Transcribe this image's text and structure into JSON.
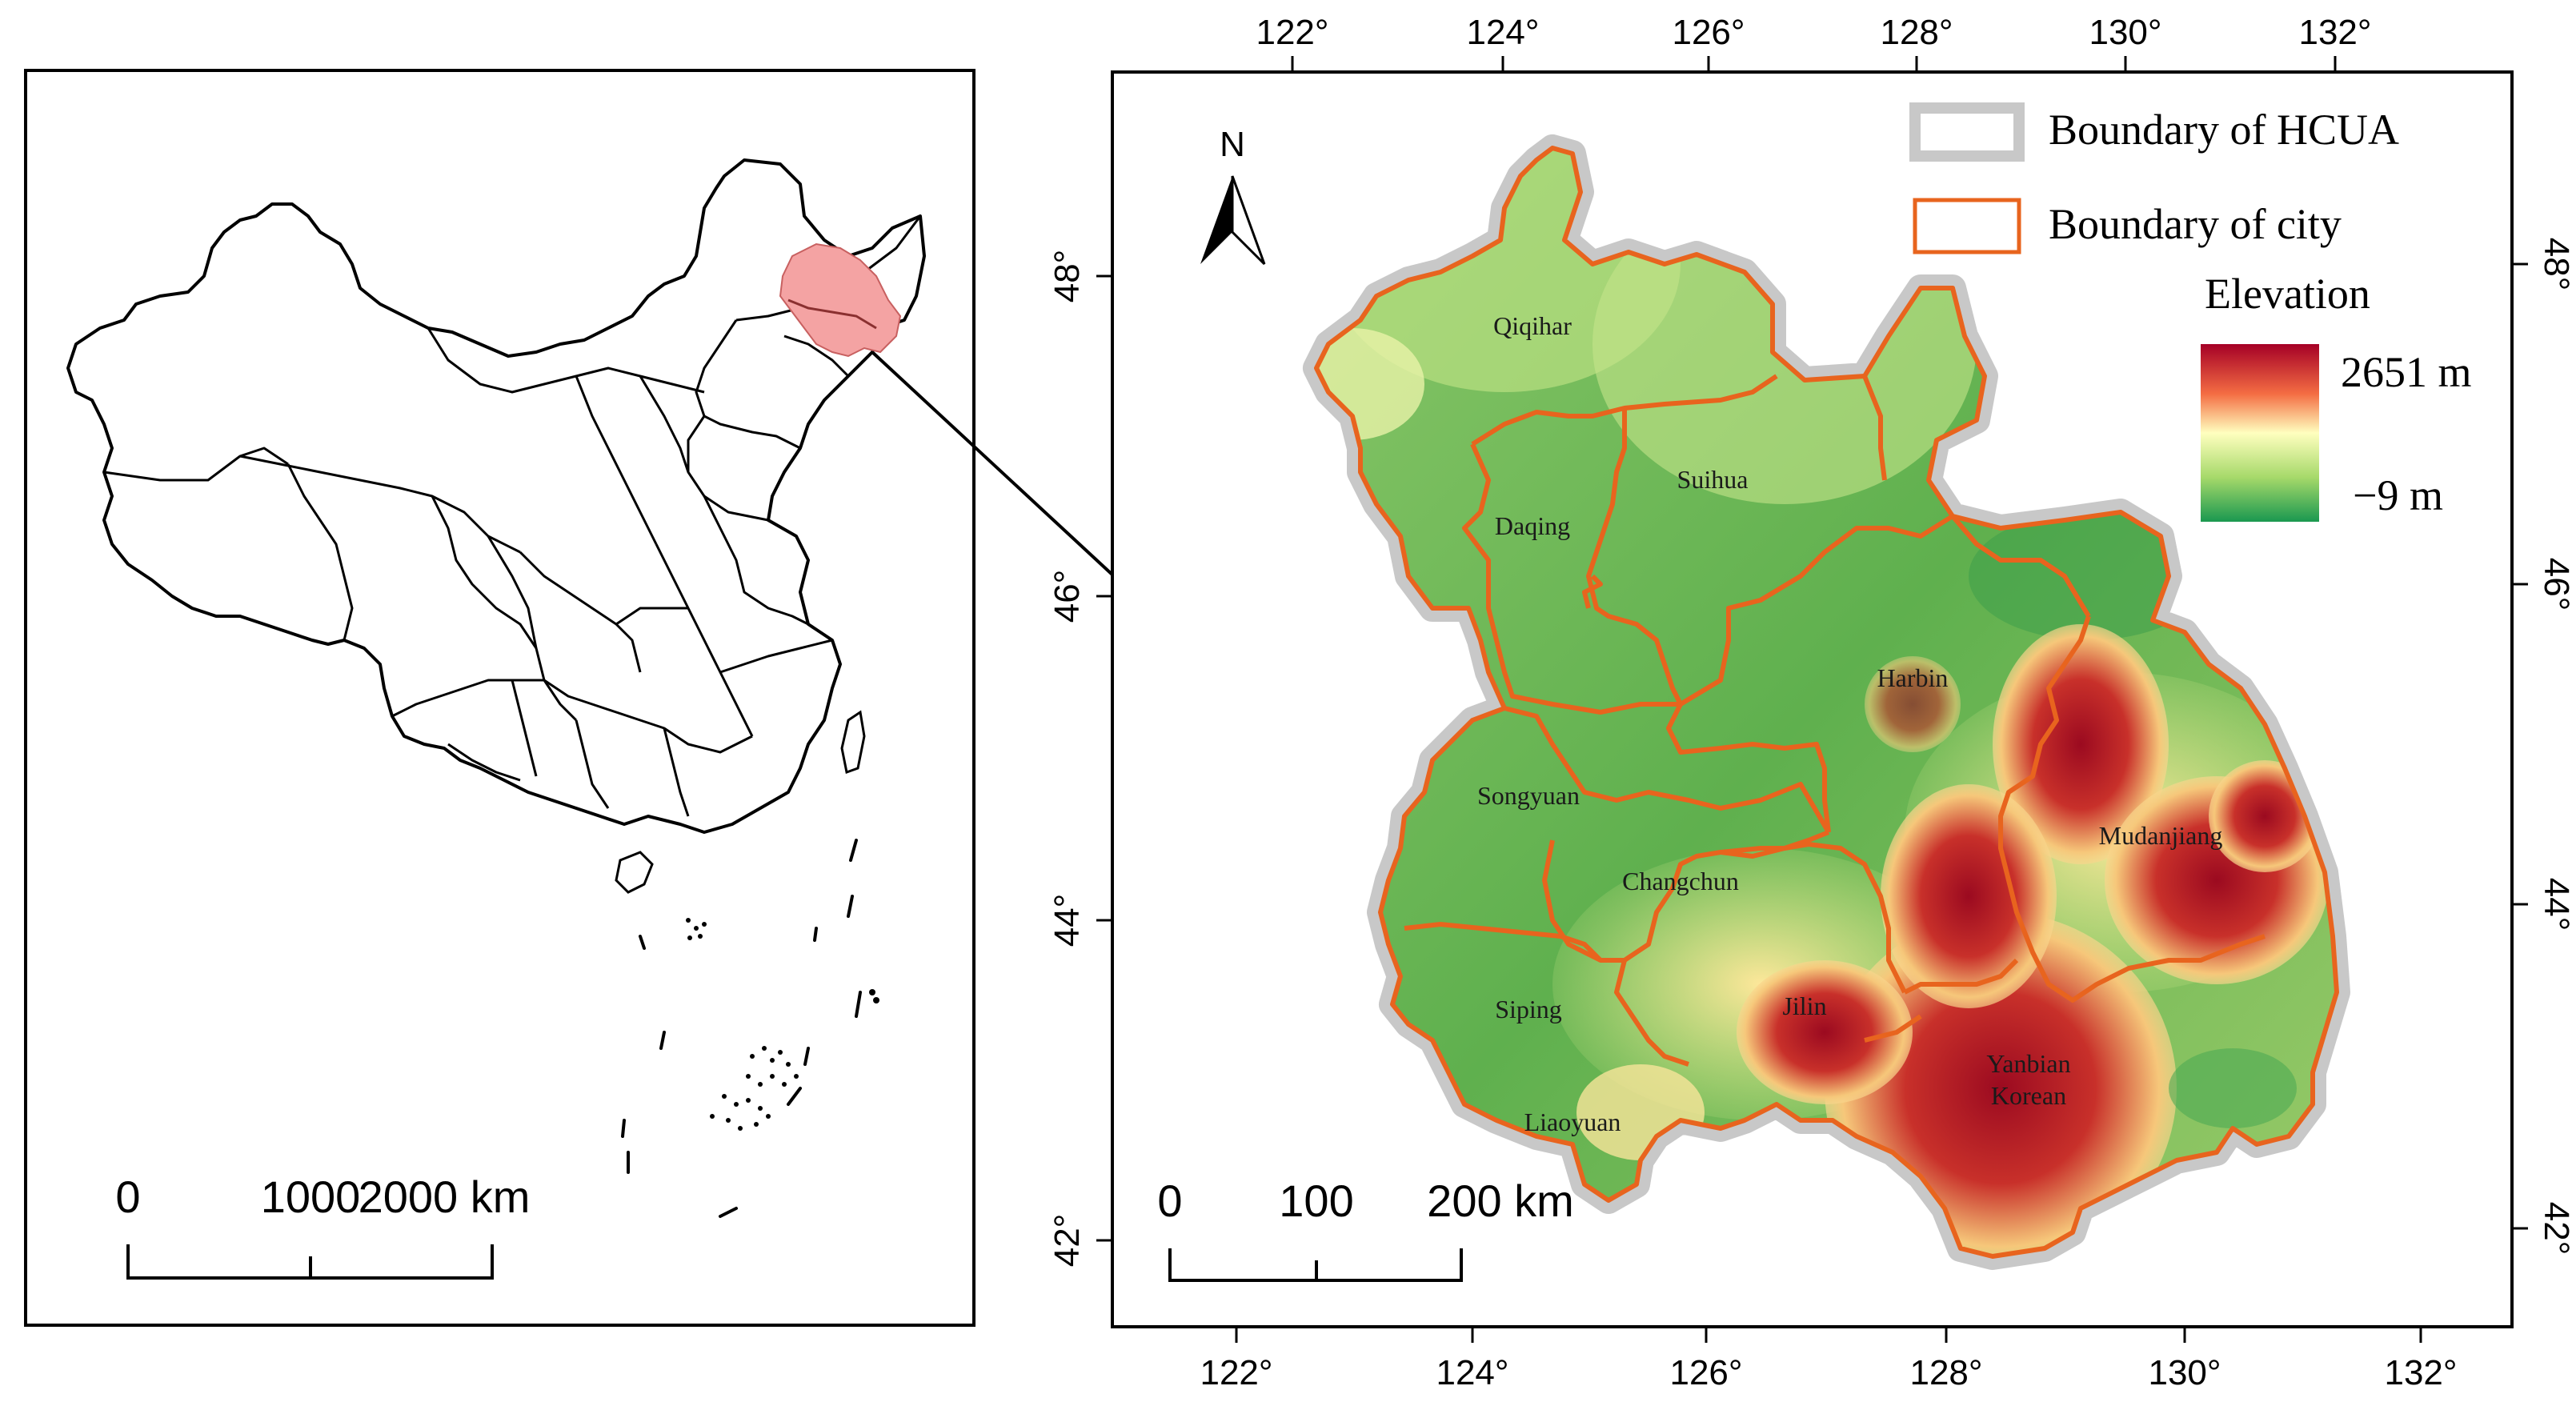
{
  "inset_map": {
    "scale_bar": {
      "labels": [
        "0",
        "1000",
        "2000 km"
      ]
    },
    "highlight_color": "#f4a3a3"
  },
  "main_map": {
    "top_lon_labels": [
      "122°",
      "124°",
      "126°",
      "128°",
      "130°",
      "132°"
    ],
    "bottom_lon_labels": [
      "122°",
      "124°",
      "126°",
      "128°",
      "130°",
      "132°"
    ],
    "left_lat_labels": [
      "48°",
      "46°",
      "44°",
      "42°"
    ],
    "right_lat_labels": [
      "48°",
      "46°",
      "44°",
      "42°"
    ],
    "north_arrow_label": "N",
    "scale_bar": {
      "labels": [
        "0",
        "100",
        "200 km"
      ]
    },
    "cities": [
      {
        "name": "Qiqihar"
      },
      {
        "name": "Daqing"
      },
      {
        "name": "Suihua"
      },
      {
        "name": "Harbin"
      },
      {
        "name": "Songyuan"
      },
      {
        "name": "Changchun"
      },
      {
        "name": "Mudanjiang"
      },
      {
        "name": "Jilin"
      },
      {
        "name": "Siping"
      },
      {
        "name": "Yanbian"
      },
      {
        "name": "Korean"
      },
      {
        "name": "Liaoyuan"
      }
    ]
  },
  "legend": {
    "hcua_label": "Boundary of HCUA",
    "city_label": "Boundary of  city",
    "elevation_title": "Elevation",
    "elevation_max": "2651 m",
    "elevation_min": "−9 m",
    "colors": {
      "hcua_border": "#c8c8c8",
      "city_border": "#e8641e",
      "ramp_high": "#a50026",
      "ramp_mid_high": "#f46d43",
      "ramp_mid": "#ffffbf",
      "ramp_mid_low": "#a6d96a",
      "ramp_low": "#1a9850"
    }
  }
}
